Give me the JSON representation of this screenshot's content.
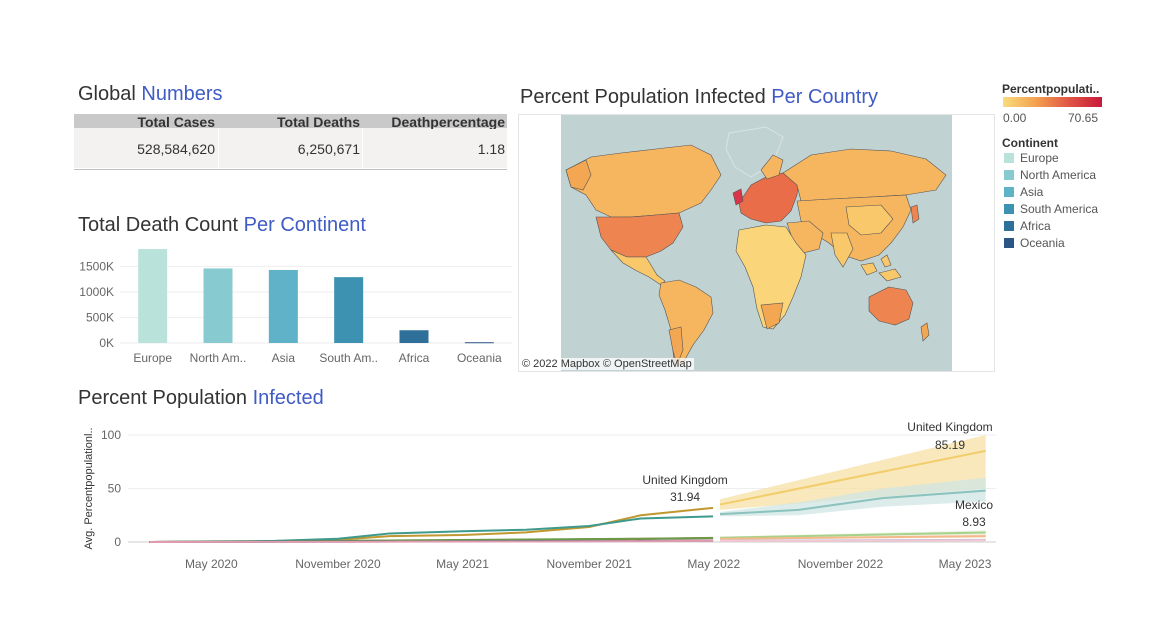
{
  "global_numbers": {
    "title_plain": "Global ",
    "title_highlight": "Numbers",
    "headers": [
      "Total Cases",
      "Total Deaths",
      "Deathpercentage"
    ],
    "values": [
      "528,584,620",
      "6,250,671",
      "1.18"
    ]
  },
  "continent_chart": {
    "title_plain": "Total Death Count ",
    "title_highlight": "Per Continent"
  },
  "map_panel": {
    "title_plain": "Percent Population Infected ",
    "title_highlight": "Per Country",
    "credit": "© 2022 Mapbox © OpenStreetMap"
  },
  "line_panel": {
    "title_plain": "Percent Population ",
    "title_highlight": "Infected"
  },
  "legend": {
    "color_title": "Percentpopulati..",
    "min": "0.00",
    "max": "70.65",
    "gradient": [
      "#fadb7e",
      "#f3a14f",
      "#e05545",
      "#c8193a"
    ],
    "continent_title": "Continent",
    "continents": [
      {
        "label": "Europe",
        "color": "#b9e3da"
      },
      {
        "label": "North America",
        "color": "#87cbd0"
      },
      {
        "label": "Asia",
        "color": "#5fb2c7"
      },
      {
        "label": "South America",
        "color": "#3d92b1"
      },
      {
        "label": "Africa",
        "color": "#2e709a"
      },
      {
        "label": "Oceania",
        "color": "#2b5584"
      }
    ]
  },
  "chart_data": [
    {
      "type": "bar",
      "title": "Total Death Count Per Continent",
      "categories": [
        "Europe",
        "North Am..",
        "Asia",
        "South Am..",
        "Africa",
        "Oceania"
      ],
      "values": [
        1840000,
        1460000,
        1430000,
        1290000,
        250000,
        15000
      ],
      "colors": [
        "#b9e3da",
        "#87cbd0",
        "#5fb2c7",
        "#3d92b1",
        "#2e709a",
        "#2b5584"
      ],
      "yticks": [
        0,
        500000,
        1000000,
        1500000
      ],
      "ytick_labels": [
        "0K",
        "500K",
        "1000K",
        "1500K"
      ],
      "ylim": [
        0,
        1900000
      ],
      "grid": true
    },
    {
      "type": "line",
      "title": "Percent Population Infected",
      "ylabel": "Avg. Percentpopulationl..",
      "ylim": [
        0,
        100
      ],
      "yticks": [
        0,
        50,
        100
      ],
      "xticks": [
        "2020-05-01",
        "2020-11-01",
        "2021-05-01",
        "2021-11-01",
        "2022-05-01",
        "2022-11-01",
        "2023-05-01"
      ],
      "xtick_labels": [
        "May 2020",
        "November 2020",
        "May 2021",
        "November 2021",
        "May 2022",
        "November 2022",
        "May 2023"
      ],
      "xlim": [
        "2020-01-01",
        "2023-06-15"
      ],
      "series": [
        {
          "name": "United Kingdom",
          "color": "#c0982f",
          "x": [
            "2020-02-01",
            "2020-05-01",
            "2020-08-01",
            "2020-11-01",
            "2021-01-15",
            "2021-05-01",
            "2021-08-01",
            "2021-11-01",
            "2022-01-15",
            "2022-04-30"
          ],
          "y": [
            0,
            0.4,
            0.6,
            2.0,
            5.5,
            6.5,
            9.0,
            14.0,
            25.0,
            31.94
          ]
        },
        {
          "name": "",
          "color": "#3d9a8c",
          "x": [
            "2020-02-01",
            "2020-05-01",
            "2020-08-01",
            "2020-11-01",
            "2021-01-15",
            "2021-05-01",
            "2021-08-01",
            "2021-11-01",
            "2022-01-15",
            "2022-04-30"
          ],
          "y": [
            0,
            0.6,
            1.0,
            3.0,
            8.0,
            10.0,
            11.5,
            15.0,
            22.0,
            24.0
          ]
        },
        {
          "name": "",
          "color": "#b65a33",
          "x": [
            "2020-02-01",
            "2020-08-01",
            "2021-02-01",
            "2021-08-01",
            "2022-02-01",
            "2022-04-30"
          ],
          "y": [
            0,
            0.3,
            1.2,
            2.0,
            3.0,
            3.6
          ]
        },
        {
          "name": "",
          "color": "#6c9a46",
          "x": [
            "2020-02-01",
            "2020-08-01",
            "2021-02-01",
            "2021-08-01",
            "2022-02-01",
            "2022-04-30"
          ],
          "y": [
            0,
            0.5,
            1.5,
            2.3,
            3.2,
            3.8
          ]
        },
        {
          "name": "",
          "color": "#2b5584",
          "x": [
            "2020-02-01",
            "2020-08-01",
            "2021-02-01",
            "2021-08-01",
            "2022-02-01",
            "2022-04-30"
          ],
          "y": [
            0,
            0.2,
            0.5,
            0.8,
            1.0,
            1.2
          ]
        },
        {
          "name": "",
          "color": "#e09cae",
          "x": [
            "2020-02-01",
            "2020-08-01",
            "2021-02-01",
            "2021-08-01",
            "2022-02-01",
            "2022-04-30"
          ],
          "y": [
            0,
            0.1,
            0.3,
            0.5,
            0.8,
            1.0
          ]
        }
      ],
      "forecasts": [
        {
          "name": "United Kingdom",
          "color": "#f2cd6b",
          "band_color": "#f7e0a6",
          "x": [
            "2022-05-10",
            "2023-05-31"
          ],
          "y": [
            35.0,
            85.19
          ],
          "band_upper": [
            40.0,
            100.0
          ],
          "band_lower": [
            30.0,
            50.0
          ]
        },
        {
          "name": "",
          "color": "#8cc2bd",
          "band_color": "#cfe6e3",
          "x": [
            "2022-05-10",
            "2022-09-01",
            "2023-01-01",
            "2023-05-31"
          ],
          "y": [
            26.0,
            30.0,
            41.0,
            48.0
          ],
          "band_upper": [
            28.0,
            37.0,
            50.0,
            60.0
          ],
          "band_lower": [
            24.0,
            25.0,
            33.0,
            38.0
          ]
        },
        {
          "name": "Mexico",
          "color": "#a8d28c",
          "band_color": "#e2f0d6",
          "x": [
            "2022-05-10",
            "2023-05-31"
          ],
          "y": [
            4.0,
            8.93
          ],
          "band_upper": [
            5.0,
            11.0
          ],
          "band_lower": [
            3.0,
            7.0
          ]
        },
        {
          "name": "",
          "color": "#f3b98a",
          "band_color": "#fbe6d4",
          "x": [
            "2022-05-10",
            "2023-05-31"
          ],
          "y": [
            3.0,
            5.5
          ],
          "band_upper": [
            4.0,
            7.0
          ],
          "band_lower": [
            2.5,
            4.0
          ]
        },
        {
          "name": "",
          "color": "#9db8dc",
          "band_color": "#e3ebf5",
          "x": [
            "2022-05-10",
            "2023-05-31"
          ],
          "y": [
            1.2,
            2.0
          ],
          "band_upper": [
            1.6,
            2.6
          ],
          "band_lower": [
            0.8,
            1.4
          ]
        },
        {
          "name": "",
          "color": "#f4c7d2",
          "band_color": "#fbeaee",
          "x": [
            "2022-05-10",
            "2023-05-31"
          ],
          "y": [
            1.0,
            1.6
          ],
          "band_upper": [
            1.3,
            2.0
          ],
          "band_lower": [
            0.7,
            1.2
          ]
        }
      ],
      "annotations": [
        {
          "label": "United Kingdom",
          "value": "31.94"
        },
        {
          "label": "United Kingdom",
          "value": "85.19"
        },
        {
          "label": "Mexico",
          "value": "8.93"
        }
      ]
    }
  ]
}
